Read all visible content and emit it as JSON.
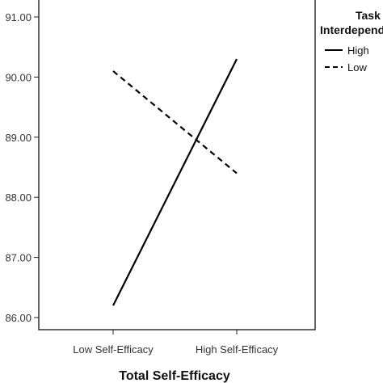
{
  "chart_data": {
    "type": "line",
    "categories": [
      "Low Self-Efficacy",
      "High Self-Efficacy"
    ],
    "xlabel": "Total Self-Efficacy",
    "ylabel": "",
    "ylim": [
      85.8,
      91.3
    ],
    "yticks": [
      "86.00",
      "87.00",
      "88.00",
      "89.00",
      "90.00",
      "91.00"
    ],
    "legend_title_lines": [
      "Task",
      "Interdependence"
    ],
    "legend_position": "top-right",
    "grid": false,
    "series": [
      {
        "name": "High",
        "values": [
          86.2,
          90.3
        ],
        "dash": "solid",
        "color": "#000000"
      },
      {
        "name": "Low",
        "values": [
          90.1,
          88.4
        ],
        "dash": "dashed",
        "color": "#000000"
      }
    ]
  }
}
